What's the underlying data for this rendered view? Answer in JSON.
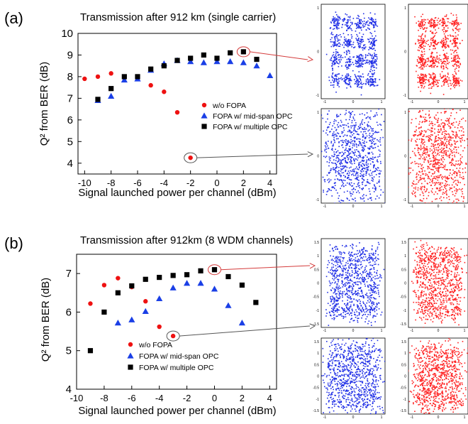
{
  "panel_labels": [
    "(a)",
    "(b)"
  ],
  "chart_data": [
    {
      "type": "scatter",
      "title": "Transmission after 912 km (single carrier)",
      "xlabel": "Signal launched power per channel (dBm)",
      "ylabel": "Q² from BER (dB)",
      "xlim": [
        -10.5,
        4.5
      ],
      "ylim": [
        3.5,
        10
      ],
      "xticks": [
        -10,
        -8,
        -6,
        -4,
        -2,
        0,
        2,
        4
      ],
      "yticks": [
        4,
        5,
        6,
        7,
        8,
        9,
        10
      ],
      "legend_position": "center-right",
      "series": [
        {
          "name": "w/o FOPA",
          "marker": "circle",
          "color": "#ee1111",
          "x": [
            -10,
            -9,
            -8,
            -7,
            -6,
            -5,
            -4,
            -3,
            -2
          ],
          "y": [
            7.9,
            8.0,
            8.15,
            7.95,
            7.9,
            7.6,
            7.3,
            6.35,
            4.25
          ]
        },
        {
          "name": "FOPA w/ mid-span OPC",
          "marker": "triangle",
          "color": "#1a3fe6",
          "x": [
            -9,
            -8,
            -7,
            -6,
            -5,
            -4,
            -3,
            -2,
            -1,
            0,
            1,
            2,
            3,
            4
          ],
          "y": [
            6.9,
            7.1,
            7.85,
            7.9,
            8.3,
            8.6,
            8.75,
            8.7,
            8.65,
            8.7,
            8.7,
            8.65,
            8.5,
            8.05
          ]
        },
        {
          "name": "FOPA w/ multiple OPC",
          "marker": "square",
          "color": "#000000",
          "x": [
            -9,
            -8,
            -7,
            -6,
            -5,
            -4,
            -3,
            -2,
            -1,
            0,
            1,
            2,
            3
          ],
          "y": [
            6.95,
            7.45,
            8.0,
            8.0,
            8.35,
            8.5,
            8.75,
            8.85,
            9.0,
            8.85,
            9.1,
            9.15,
            8.8
          ]
        }
      ],
      "highlight_points": [
        {
          "series": 2,
          "index": 11
        },
        {
          "series": 0,
          "index": 8
        }
      ]
    },
    {
      "type": "scatter",
      "title": "Transmission after 912km (8 WDM channels)",
      "xlabel": "Signal launched power per channel (dBm)",
      "ylabel": "Q² from BER (dB)",
      "xlim": [
        -10,
        4.5
      ],
      "ylim": [
        4,
        7.5
      ],
      "xticks": [
        -10,
        -8,
        -6,
        -4,
        -2,
        0,
        2,
        4
      ],
      "yticks": [
        4,
        5,
        6,
        7
      ],
      "legend_position": "bottom-right",
      "series": [
        {
          "name": "w/o FOPA",
          "marker": "circle",
          "color": "#ee1111",
          "x": [
            -9,
            -8,
            -7,
            -6,
            -5,
            -4,
            -3
          ],
          "y": [
            6.22,
            6.7,
            6.88,
            6.65,
            6.28,
            5.62,
            5.38
          ]
        },
        {
          "name": "FOPA w/ mid-span OPC",
          "marker": "triangle",
          "color": "#1a3fe6",
          "x": [
            -7,
            -6,
            -5,
            -4,
            -3,
            -2,
            -1,
            0,
            1,
            2
          ],
          "y": [
            5.72,
            5.8,
            6.02,
            6.35,
            6.63,
            6.75,
            6.75,
            6.6,
            6.17,
            5.72
          ]
        },
        {
          "name": "FOPA w/ multiple OPC",
          "marker": "square",
          "color": "#000000",
          "x": [
            -9,
            -8,
            -7,
            -6,
            -5,
            -4,
            -3,
            -2,
            -1,
            0,
            1,
            2,
            3
          ],
          "y": [
            5.0,
            6.0,
            6.5,
            6.68,
            6.85,
            6.9,
            6.95,
            6.97,
            7.07,
            7.1,
            6.92,
            6.7,
            6.25
          ]
        }
      ],
      "highlight_points": [
        {
          "series": 2,
          "index": 9
        },
        {
          "series": 0,
          "index": 6
        }
      ]
    }
  ],
  "constellations": [
    {
      "name": "a-top-blue",
      "color": "#1f2ee6",
      "style": "16qam",
      "noise": 0.11,
      "yticks": [
        "1",
        "0",
        "-1"
      ],
      "xticks": [
        "-1",
        "0",
        "1"
      ]
    },
    {
      "name": "a-top-red",
      "color": "#ff2121",
      "style": "16qam",
      "noise": 0.11,
      "yticks": [
        "1",
        "0",
        "-1"
      ],
      "xticks": [
        "-1",
        "0",
        "1"
      ]
    },
    {
      "name": "a-bottom-blue",
      "color": "#1f2ee6",
      "style": "16qam",
      "noise": 0.32,
      "yticks": [
        "1",
        "0",
        "-1"
      ],
      "xticks": [
        "-1",
        "0",
        "1"
      ]
    },
    {
      "name": "a-bottom-red",
      "color": "#ff2121",
      "style": "16qam",
      "noise": 0.32,
      "yticks": [
        "1",
        "0",
        "-1"
      ],
      "xticks": [
        "-1",
        "0",
        "1"
      ]
    },
    {
      "name": "b-top-blue",
      "color": "#1f2ee6",
      "style": "16qam",
      "noise": 0.17,
      "yticks": [
        "1.5",
        "1",
        "0.5",
        "0",
        "-0.5",
        "-1",
        "-1.5"
      ],
      "xticks": [
        "-1",
        "0",
        "1"
      ]
    },
    {
      "name": "b-top-red",
      "color": "#ff2121",
      "style": "16qam",
      "noise": 0.17,
      "yticks": [
        "1.5",
        "1",
        "0.5",
        "0",
        "-0.5",
        "-1",
        "-1.5"
      ],
      "xticks": [
        "-1",
        "0",
        "1"
      ]
    },
    {
      "name": "b-bottom-blue",
      "color": "#1f2ee6",
      "style": "16qam",
      "noise": 0.24,
      "yticks": [
        "1.5",
        "1",
        "0.5",
        "0",
        "-0.5",
        "-1",
        "-1.5"
      ],
      "xticks": [
        "-1",
        "0",
        "1"
      ]
    },
    {
      "name": "b-bottom-red",
      "color": "#ff2121",
      "style": "16qam",
      "noise": 0.24,
      "yticks": [
        "1.5",
        "1",
        "0.5",
        "0",
        "-0.5",
        "-1",
        "-1.5"
      ],
      "xticks": [
        "-1",
        "0",
        "1"
      ]
    }
  ]
}
